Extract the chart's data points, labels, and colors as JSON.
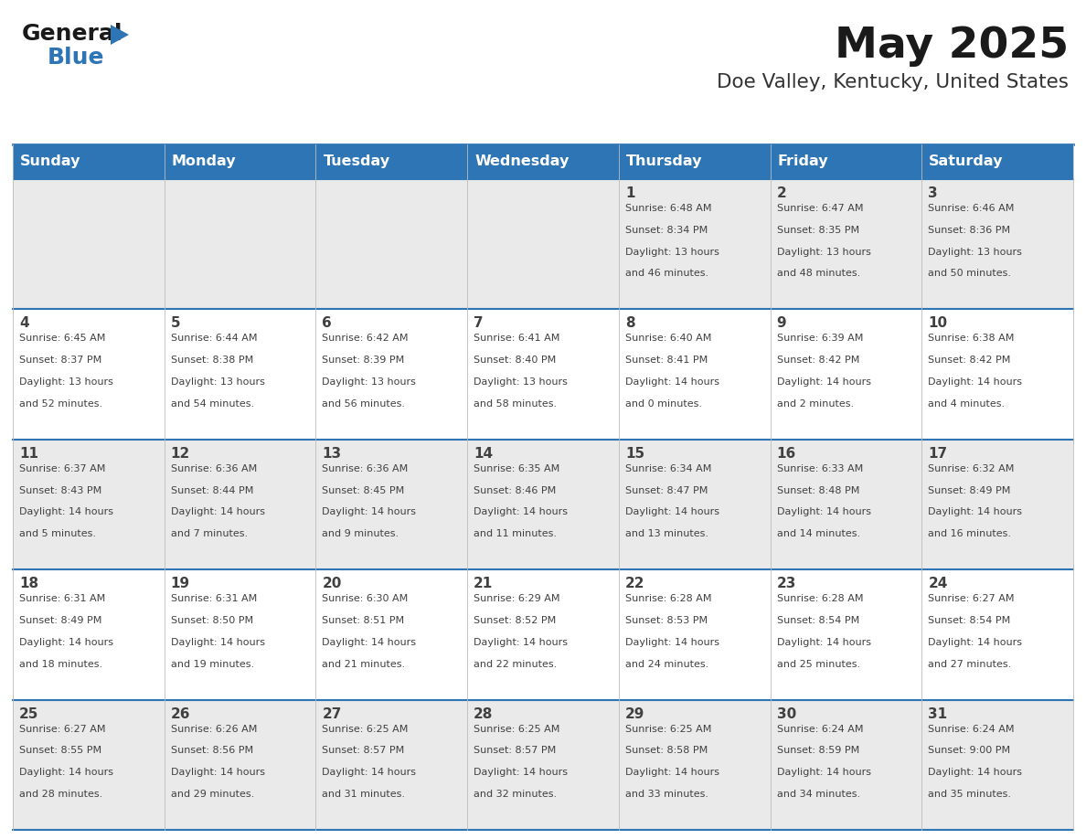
{
  "title": "May 2025",
  "subtitle": "Doe Valley, Kentucky, United States",
  "header_bg": "#2E75B6",
  "header_text_color": "#FFFFFF",
  "cell_bg_even": "#EAEAEA",
  "cell_bg_odd": "#FFFFFF",
  "day_names": [
    "Sunday",
    "Monday",
    "Tuesday",
    "Wednesday",
    "Thursday",
    "Friday",
    "Saturday"
  ],
  "separator_color": "#2E75B6",
  "text_color": "#404040",
  "days": [
    {
      "day": 1,
      "col": 4,
      "row": 0,
      "sunrise": "6:48 AM",
      "sunset": "8:34 PM",
      "daylight": "13 hours and 46 minutes"
    },
    {
      "day": 2,
      "col": 5,
      "row": 0,
      "sunrise": "6:47 AM",
      "sunset": "8:35 PM",
      "daylight": "13 hours and 48 minutes"
    },
    {
      "day": 3,
      "col": 6,
      "row": 0,
      "sunrise": "6:46 AM",
      "sunset": "8:36 PM",
      "daylight": "13 hours and 50 minutes"
    },
    {
      "day": 4,
      "col": 0,
      "row": 1,
      "sunrise": "6:45 AM",
      "sunset": "8:37 PM",
      "daylight": "13 hours and 52 minutes"
    },
    {
      "day": 5,
      "col": 1,
      "row": 1,
      "sunrise": "6:44 AM",
      "sunset": "8:38 PM",
      "daylight": "13 hours and 54 minutes"
    },
    {
      "day": 6,
      "col": 2,
      "row": 1,
      "sunrise": "6:42 AM",
      "sunset": "8:39 PM",
      "daylight": "13 hours and 56 minutes"
    },
    {
      "day": 7,
      "col": 3,
      "row": 1,
      "sunrise": "6:41 AM",
      "sunset": "8:40 PM",
      "daylight": "13 hours and 58 minutes"
    },
    {
      "day": 8,
      "col": 4,
      "row": 1,
      "sunrise": "6:40 AM",
      "sunset": "8:41 PM",
      "daylight": "14 hours and 0 minutes"
    },
    {
      "day": 9,
      "col": 5,
      "row": 1,
      "sunrise": "6:39 AM",
      "sunset": "8:42 PM",
      "daylight": "14 hours and 2 minutes"
    },
    {
      "day": 10,
      "col": 6,
      "row": 1,
      "sunrise": "6:38 AM",
      "sunset": "8:42 PM",
      "daylight": "14 hours and 4 minutes"
    },
    {
      "day": 11,
      "col": 0,
      "row": 2,
      "sunrise": "6:37 AM",
      "sunset": "8:43 PM",
      "daylight": "14 hours and 5 minutes"
    },
    {
      "day": 12,
      "col": 1,
      "row": 2,
      "sunrise": "6:36 AM",
      "sunset": "8:44 PM",
      "daylight": "14 hours and 7 minutes"
    },
    {
      "day": 13,
      "col": 2,
      "row": 2,
      "sunrise": "6:36 AM",
      "sunset": "8:45 PM",
      "daylight": "14 hours and 9 minutes"
    },
    {
      "day": 14,
      "col": 3,
      "row": 2,
      "sunrise": "6:35 AM",
      "sunset": "8:46 PM",
      "daylight": "14 hours and 11 minutes"
    },
    {
      "day": 15,
      "col": 4,
      "row": 2,
      "sunrise": "6:34 AM",
      "sunset": "8:47 PM",
      "daylight": "14 hours and 13 minutes"
    },
    {
      "day": 16,
      "col": 5,
      "row": 2,
      "sunrise": "6:33 AM",
      "sunset": "8:48 PM",
      "daylight": "14 hours and 14 minutes"
    },
    {
      "day": 17,
      "col": 6,
      "row": 2,
      "sunrise": "6:32 AM",
      "sunset": "8:49 PM",
      "daylight": "14 hours and 16 minutes"
    },
    {
      "day": 18,
      "col": 0,
      "row": 3,
      "sunrise": "6:31 AM",
      "sunset": "8:49 PM",
      "daylight": "14 hours and 18 minutes"
    },
    {
      "day": 19,
      "col": 1,
      "row": 3,
      "sunrise": "6:31 AM",
      "sunset": "8:50 PM",
      "daylight": "14 hours and 19 minutes"
    },
    {
      "day": 20,
      "col": 2,
      "row": 3,
      "sunrise": "6:30 AM",
      "sunset": "8:51 PM",
      "daylight": "14 hours and 21 minutes"
    },
    {
      "day": 21,
      "col": 3,
      "row": 3,
      "sunrise": "6:29 AM",
      "sunset": "8:52 PM",
      "daylight": "14 hours and 22 minutes"
    },
    {
      "day": 22,
      "col": 4,
      "row": 3,
      "sunrise": "6:28 AM",
      "sunset": "8:53 PM",
      "daylight": "14 hours and 24 minutes"
    },
    {
      "day": 23,
      "col": 5,
      "row": 3,
      "sunrise": "6:28 AM",
      "sunset": "8:54 PM",
      "daylight": "14 hours and 25 minutes"
    },
    {
      "day": 24,
      "col": 6,
      "row": 3,
      "sunrise": "6:27 AM",
      "sunset": "8:54 PM",
      "daylight": "14 hours and 27 minutes"
    },
    {
      "day": 25,
      "col": 0,
      "row": 4,
      "sunrise": "6:27 AM",
      "sunset": "8:55 PM",
      "daylight": "14 hours and 28 minutes"
    },
    {
      "day": 26,
      "col": 1,
      "row": 4,
      "sunrise": "6:26 AM",
      "sunset": "8:56 PM",
      "daylight": "14 hours and 29 minutes"
    },
    {
      "day": 27,
      "col": 2,
      "row": 4,
      "sunrise": "6:25 AM",
      "sunset": "8:57 PM",
      "daylight": "14 hours and 31 minutes"
    },
    {
      "day": 28,
      "col": 3,
      "row": 4,
      "sunrise": "6:25 AM",
      "sunset": "8:57 PM",
      "daylight": "14 hours and 32 minutes"
    },
    {
      "day": 29,
      "col": 4,
      "row": 4,
      "sunrise": "6:25 AM",
      "sunset": "8:58 PM",
      "daylight": "14 hours and 33 minutes"
    },
    {
      "day": 30,
      "col": 5,
      "row": 4,
      "sunrise": "6:24 AM",
      "sunset": "8:59 PM",
      "daylight": "14 hours and 34 minutes"
    },
    {
      "day": 31,
      "col": 6,
      "row": 4,
      "sunrise": "6:24 AM",
      "sunset": "9:00 PM",
      "daylight": "14 hours and 35 minutes"
    }
  ]
}
